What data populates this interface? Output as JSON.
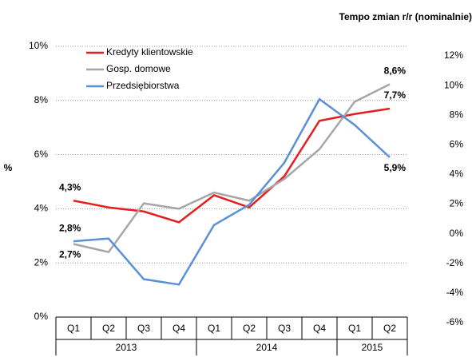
{
  "chart_data": {
    "type": "line",
    "title": "Tempo zmian r/r (nominalnie)",
    "y_label": "%",
    "categories": [
      "Q1",
      "Q2",
      "Q3",
      "Q4",
      "Q1",
      "Q2",
      "Q3",
      "Q4",
      "Q1",
      "Q2"
    ],
    "category_groups": [
      {
        "label": "2013",
        "count": 4
      },
      {
        "label": "2014",
        "count": 4
      },
      {
        "label": "2015",
        "count": 2
      }
    ],
    "series": [
      {
        "name": "Kredyty klientowskie",
        "color": "#e41e1e",
        "label_color": "#e41e1e",
        "values": [
          4.3,
          4.05,
          3.9,
          3.5,
          4.5,
          4.05,
          5.2,
          7.25,
          7.5,
          7.7
        ],
        "value_labels": [
          "4,3%",
          null,
          null,
          null,
          null,
          null,
          null,
          null,
          null,
          "7,7%"
        ]
      },
      {
        "name": "Gosp. domowe",
        "color": "#a6a6a6",
        "label_color": "#000000",
        "values": [
          2.7,
          2.4,
          4.2,
          4.0,
          4.6,
          4.3,
          5.1,
          6.2,
          7.95,
          8.6
        ],
        "value_labels": [
          "2,7%",
          null,
          null,
          null,
          null,
          null,
          null,
          null,
          null,
          "8,6%"
        ]
      },
      {
        "name": "Przedsiębiorstwa",
        "color": "#5b8fd6",
        "label_color": "#33339a",
        "values": [
          2.8,
          2.9,
          1.4,
          1.2,
          3.4,
          4.15,
          5.7,
          8.05,
          7.1,
          5.9
        ],
        "value_labels": [
          "2,8%",
          null,
          null,
          null,
          null,
          null,
          null,
          null,
          null,
          "5,9%"
        ]
      }
    ],
    "ylim": [
      0,
      10
    ],
    "yticks": [
      {
        "value": 0,
        "label": "0%"
      },
      {
        "value": 2,
        "label": "2%"
      },
      {
        "value": 4,
        "label": "4%"
      },
      {
        "value": 6,
        "label": "6%"
      },
      {
        "value": 8,
        "label": "8%"
      },
      {
        "value": 10,
        "label": "10%"
      }
    ],
    "y2lim": [
      -6,
      12
    ],
    "y2ticks": [
      {
        "value": -6,
        "label": "-6%"
      },
      {
        "value": -4,
        "label": "-4%"
      },
      {
        "value": -2,
        "label": "-2%"
      },
      {
        "value": 0,
        "label": "0%"
      },
      {
        "value": 2,
        "label": "2%"
      },
      {
        "value": 4,
        "label": "4%"
      },
      {
        "value": 6,
        "label": "6%"
      },
      {
        "value": 8,
        "label": "8%"
      },
      {
        "value": 10,
        "label": "10%"
      },
      {
        "value": 12,
        "label": "12%"
      }
    ],
    "grid": true,
    "legend": "top-left"
  }
}
